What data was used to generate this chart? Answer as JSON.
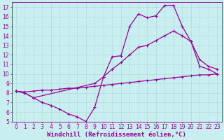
{
  "bg_color": "#c8eef0",
  "grid_color": "#b0d8d8",
  "line_color": "#990099",
  "marker": "+",
  "markersize": 3,
  "linewidth": 0.9,
  "xlabel": "Windchill (Refroidissement éolien,°C)",
  "xlabel_fontsize": 6.5,
  "tick_fontsize": 5.5,
  "xlim": [
    -0.5,
    23.5
  ],
  "ylim": [
    5,
    17.5
  ],
  "yticks": [
    5,
    6,
    7,
    8,
    9,
    10,
    11,
    12,
    13,
    14,
    15,
    16,
    17
  ],
  "xticks": [
    0,
    1,
    2,
    3,
    4,
    5,
    6,
    7,
    8,
    9,
    10,
    11,
    12,
    13,
    14,
    15,
    16,
    17,
    18,
    19,
    20,
    21,
    22,
    23
  ],
  "s1_x": [
    0,
    1,
    2,
    3,
    4,
    5,
    6,
    7,
    8,
    9,
    10,
    11,
    12,
    13,
    14,
    15,
    16,
    17,
    18,
    19,
    20,
    21,
    22,
    23
  ],
  "s1_y": [
    8.2,
    8.0,
    7.5,
    7.0,
    6.7,
    6.3,
    5.8,
    5.5,
    5.0,
    6.5,
    9.7,
    11.8,
    11.9,
    15.0,
    16.3,
    15.9,
    16.1,
    17.2,
    17.2,
    15.0,
    13.4,
    10.8,
    10.5,
    10.0
  ],
  "s2_x": [
    0,
    1,
    2,
    3,
    4,
    5,
    6,
    7,
    8,
    9,
    10,
    11,
    12,
    13,
    14,
    15,
    16,
    17,
    18,
    19,
    20,
    21,
    22,
    23
  ],
  "s2_y": [
    8.2,
    8.1,
    8.2,
    8.3,
    8.3,
    8.4,
    8.5,
    8.5,
    8.6,
    8.7,
    8.8,
    8.9,
    9.0,
    9.1,
    9.2,
    9.3,
    9.4,
    9.5,
    9.6,
    9.7,
    9.8,
    9.9,
    9.9,
    10.0
  ],
  "s3_x": [
    0,
    1,
    2,
    9,
    10,
    11,
    12,
    13,
    14,
    15,
    16,
    17,
    18,
    19,
    20,
    21,
    22,
    23
  ],
  "s3_y": [
    8.2,
    8.0,
    7.5,
    9.0,
    9.7,
    10.5,
    11.2,
    12.0,
    12.8,
    13.0,
    13.5,
    14.0,
    14.5,
    14.0,
    13.4,
    11.5,
    10.8,
    10.5
  ]
}
